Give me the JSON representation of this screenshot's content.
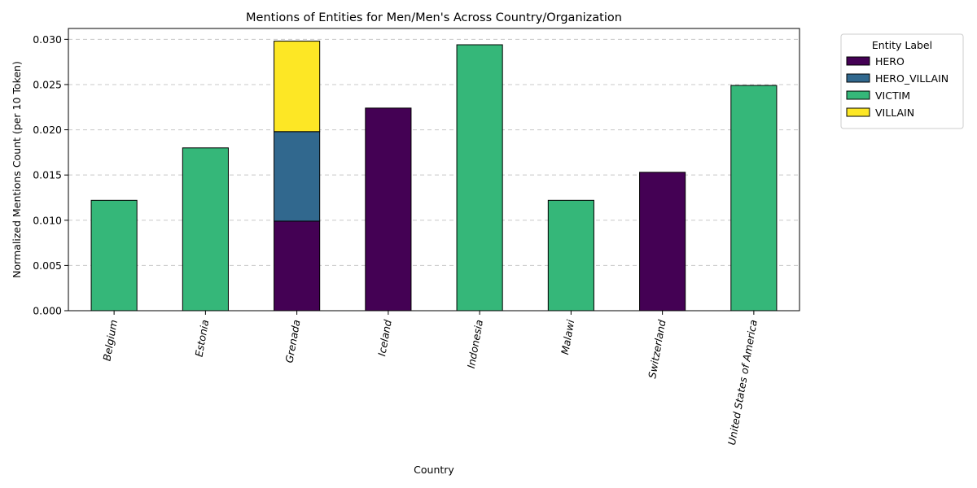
{
  "chart_data": {
    "type": "bar",
    "stacked": true,
    "title": "Mentions of Entities for Men/Men's Across Country/Organization",
    "xlabel": "Country",
    "ylabel": "Normalized Mentions Count (per 10 Token)",
    "ylim": [
      0,
      0.0312
    ],
    "yticks": [
      "0.000",
      "0.005",
      "0.010",
      "0.015",
      "0.020",
      "0.025",
      "0.030"
    ],
    "grid": "y-dashed",
    "legend_title": "Entity Label",
    "legend_position": "outside-top-right",
    "categories": [
      "Belgium",
      "Estonia",
      "Grenada",
      "Iceland",
      "Indonesia",
      "Malawi",
      "Switzerland",
      "United States of America"
    ],
    "series": [
      {
        "name": "HERO",
        "color": "#440154",
        "values": [
          0,
          0,
          0.0099,
          0.0224,
          0,
          0,
          0.0153,
          0
        ]
      },
      {
        "name": "HERO_VILLAIN",
        "color": "#31688e",
        "values": [
          0,
          0,
          0.0099,
          0,
          0,
          0,
          0,
          0
        ]
      },
      {
        "name": "VICTIM",
        "color": "#35b779",
        "values": [
          0.0122,
          0.018,
          0,
          0,
          0.0294,
          0.0122,
          0,
          0.0249
        ]
      },
      {
        "name": "VILLAIN",
        "color": "#fde725",
        "values": [
          0,
          0,
          0.01,
          0,
          0,
          0,
          0,
          0
        ]
      }
    ]
  }
}
